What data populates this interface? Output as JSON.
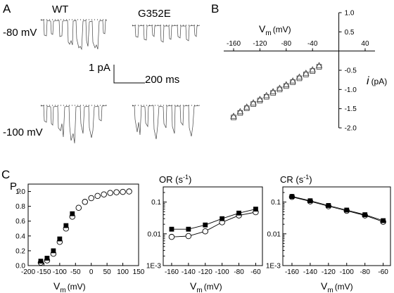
{
  "figure": {
    "panel_labels": [
      "A",
      "B",
      "C"
    ],
    "traces": {
      "col_labels": [
        "WT",
        "G352E"
      ],
      "row_labels": [
        "-80 mV",
        "-100 mV"
      ],
      "scale_current": "1 pA",
      "scale_time": "200 ms"
    }
  },
  "chart_data": [
    {
      "id": "iv",
      "type": "scatter",
      "title": "",
      "xlabel_main": "V",
      "xlabel_sub": "m",
      "xlabel_unit": "(mV)",
      "ylabel_main": "i",
      "ylabel_unit": "(pA)",
      "xlim": [
        -175,
        55
      ],
      "ylim": [
        -2.0,
        1.0
      ],
      "xticks": [
        -160,
        -120,
        -80,
        -40,
        40
      ],
      "yticks": [
        1.0,
        0.5,
        -0.5,
        -1.0,
        -1.5,
        -2.0
      ],
      "series": [
        {
          "marker": "triangle",
          "x": [
            -160,
            -150,
            -140,
            -130,
            -120,
            -110,
            -100,
            -90,
            -80,
            -70,
            -60,
            -50,
            -40,
            -30
          ],
          "y": [
            -1.7,
            -1.58,
            -1.46,
            -1.35,
            -1.26,
            -1.16,
            -1.06,
            -0.97,
            -0.88,
            -0.78,
            -0.68,
            -0.58,
            -0.49,
            -0.38
          ]
        },
        {
          "marker": "square",
          "x": [
            -160,
            -150,
            -140,
            -130,
            -120,
            -110,
            -100,
            -90,
            -80,
            -70,
            -60,
            -50,
            -40,
            -30
          ],
          "y": [
            -1.73,
            -1.61,
            -1.49,
            -1.38,
            -1.29,
            -1.19,
            -1.09,
            -1.0,
            -0.91,
            -0.81,
            -0.71,
            -0.61,
            -0.52,
            -0.41
          ]
        }
      ]
    },
    {
      "id": "po",
      "type": "scatter",
      "title_main": "P",
      "title_sub": "o",
      "xlabel_main": "V",
      "xlabel_sub": "m",
      "xlabel_unit": "(mV)",
      "xlim": [
        -200,
        150
      ],
      "ylim": [
        0.0,
        1.1
      ],
      "xticks": [
        -200,
        -150,
        -100,
        -50,
        0,
        50,
        100,
        150
      ],
      "yticks": [
        0.0,
        0.2,
        0.4,
        0.6,
        0.8,
        1.0
      ],
      "ytick_labels": [
        "0.0",
        "0.2",
        "0.4",
        "0.6",
        "0.8",
        "1.0"
      ],
      "series": [
        {
          "marker": "square-filled",
          "x": [
            -160,
            -140,
            -120,
            -100,
            -80,
            -60
          ],
          "y": [
            0.06,
            0.1,
            0.2,
            0.36,
            0.54,
            0.7
          ]
        },
        {
          "marker": "circle-open",
          "x": [
            -160,
            -140,
            -120,
            -100,
            -80,
            -60,
            -40,
            -20,
            0,
            20,
            40,
            60,
            80,
            100,
            120
          ],
          "y": [
            0.04,
            0.07,
            0.16,
            0.32,
            0.5,
            0.66,
            0.78,
            0.86,
            0.91,
            0.94,
            0.96,
            0.98,
            0.99,
            0.995,
            1.0
          ]
        }
      ]
    },
    {
      "id": "or",
      "type": "line",
      "title_main": "OR (s",
      "title_sup": "-1",
      "title_end": ")",
      "xlabel_main": "V",
      "xlabel_sub": "m",
      "xlabel_unit": "(mV)",
      "xlim": [
        -170,
        -52
      ],
      "ylim_log": [
        0.001,
        0.3
      ],
      "scale": "log",
      "xticks": [
        -160,
        -140,
        -120,
        -100,
        -80,
        -60
      ],
      "yticks": [
        0.001,
        0.01,
        0.1
      ],
      "ytick_labels": [
        "1E-3",
        "0.01",
        "0.1"
      ],
      "series": [
        {
          "marker": "square-filled",
          "x": [
            -160,
            -140,
            -120,
            -100,
            -80,
            -60
          ],
          "y": [
            0.014,
            0.014,
            0.019,
            0.03,
            0.045,
            0.06
          ]
        },
        {
          "marker": "circle-open",
          "x": [
            -160,
            -140,
            -120,
            -100,
            -80,
            -60
          ],
          "y": [
            0.008,
            0.0085,
            0.012,
            0.023,
            0.038,
            0.048
          ]
        }
      ]
    },
    {
      "id": "cr",
      "type": "line",
      "title_main": "CR (s",
      "title_sup": "-1",
      "title_end": ")",
      "xlabel_main": "V",
      "xlabel_sub": "m",
      "xlabel_unit": "(mV)",
      "xlim": [
        -170,
        -52
      ],
      "ylim_log": [
        0.001,
        0.3
      ],
      "scale": "log",
      "xticks": [
        -160,
        -140,
        -120,
        -100,
        -80,
        -60
      ],
      "yticks": [
        0.001,
        0.01,
        0.1
      ],
      "ytick_labels": [
        "1E-3",
        "0.01",
        "0.1"
      ],
      "series": [
        {
          "marker": "square-filled",
          "x": [
            -160,
            -140,
            -120,
            -100,
            -80,
            -60
          ],
          "y": [
            0.15,
            0.11,
            0.078,
            0.056,
            0.04,
            0.026
          ]
        },
        {
          "marker": "circle-open",
          "x": [
            -160,
            -140,
            -120,
            -100,
            -80,
            -60
          ],
          "y": [
            0.145,
            0.105,
            0.074,
            0.053,
            0.038,
            0.024
          ]
        }
      ]
    }
  ]
}
